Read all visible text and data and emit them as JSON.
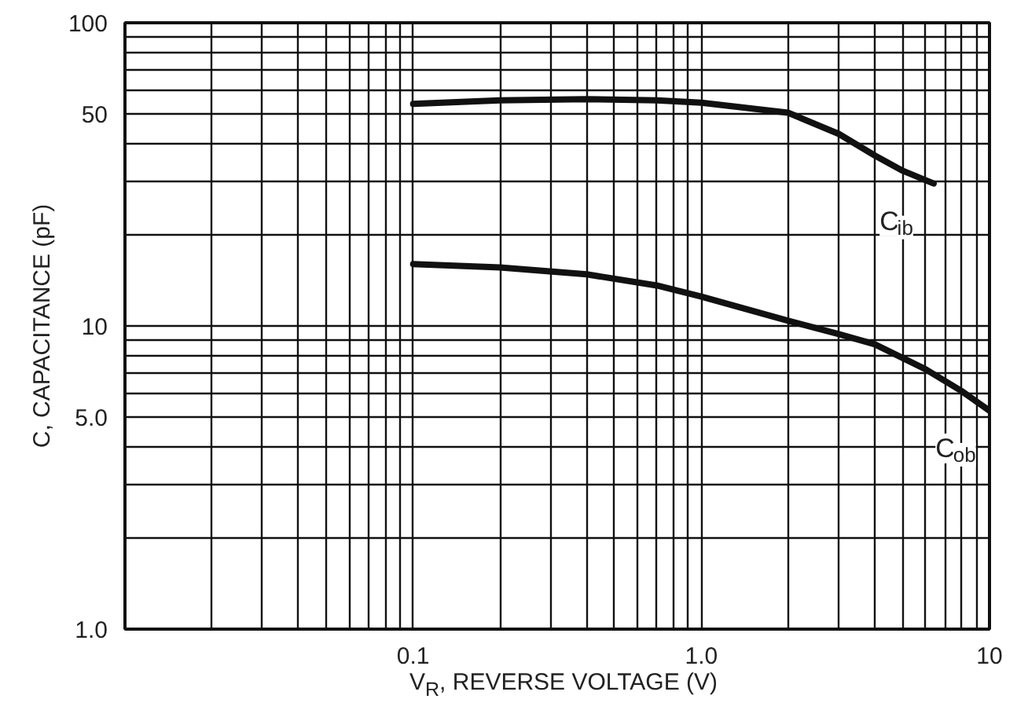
{
  "chart_data": {
    "type": "line",
    "xlabel": "V$_{R}$, REVERSE VOLTAGE (V)",
    "ylabel": "C, CAPACITANCE (pF)",
    "log": "xy",
    "xlim": [
      0.01,
      10
    ],
    "ylim": [
      1,
      100
    ],
    "xticks": [
      {
        "value": 0.01,
        "label": null
      },
      {
        "value": 0.02,
        "label": null
      },
      {
        "value": 0.03,
        "label": null
      },
      {
        "value": 0.04,
        "label": null
      },
      {
        "value": 0.05,
        "label": null
      },
      {
        "value": 0.06,
        "label": null
      },
      {
        "value": 0.07,
        "label": null
      },
      {
        "value": 0.08,
        "label": null
      },
      {
        "value": 0.09,
        "label": null
      },
      0.1,
      {
        "value": 0.2,
        "label": null
      },
      {
        "value": 0.3,
        "label": null
      },
      {
        "value": 0.4,
        "label": null
      },
      {
        "value": 0.5,
        "label": null
      },
      {
        "value": 0.6,
        "label": null
      },
      {
        "value": 0.7,
        "label": null
      },
      {
        "value": 0.8,
        "label": null
      },
      {
        "value": 0.9,
        "label": null
      },
      {
        "value": 1,
        "label": "1.0"
      },
      {
        "value": 2,
        "label": null
      },
      {
        "value": 3,
        "label": null
      },
      {
        "value": 4,
        "label": null
      },
      {
        "value": 5,
        "label": null
      },
      {
        "value": 6,
        "label": null
      },
      {
        "value": 7,
        "label": null
      },
      {
        "value": 8,
        "label": null
      },
      {
        "value": 9,
        "label": null
      },
      10
    ],
    "yticks": [
      {
        "value": 1,
        "label": "1.0"
      },
      {
        "value": 2,
        "label": null
      },
      {
        "value": 3,
        "label": null
      },
      {
        "value": 4,
        "label": null
      },
      {
        "value": 5,
        "label": "5.0"
      },
      {
        "value": 6,
        "label": null
      },
      {
        "value": 7,
        "label": null
      },
      {
        "value": 8,
        "label": null
      },
      {
        "value": 9,
        "label": null
      },
      10,
      {
        "value": 20,
        "label": null
      },
      {
        "value": 30,
        "label": null
      },
      {
        "value": 40,
        "label": null
      },
      50,
      {
        "value": 60,
        "label": null
      },
      {
        "value": 70,
        "label": null
      },
      {
        "value": 80,
        "label": null
      },
      {
        "value": 90,
        "label": null
      },
      100
    ],
    "grid": true,
    "series": [
      {
        "name": "C$_{ib}$",
        "color": "#111111",
        "x": [
          0.1,
          0.2,
          0.4,
          0.7,
          1.0,
          2.0,
          3.0,
          4.0,
          5.0,
          6.4
        ],
        "values": [
          54,
          55.5,
          56,
          55.5,
          54.5,
          50.5,
          43,
          36.5,
          32.5,
          29.5
        ]
      },
      {
        "name": "C$_{ob}$",
        "color": "#111111",
        "x": [
          0.1,
          0.2,
          0.4,
          0.7,
          1.0,
          2.0,
          3.0,
          4.0,
          6.0,
          8.0,
          10.0
        ],
        "values": [
          16,
          15.6,
          14.8,
          13.6,
          12.5,
          10.4,
          9.4,
          8.7,
          7.2,
          6.1,
          5.25
        ]
      }
    ]
  }
}
